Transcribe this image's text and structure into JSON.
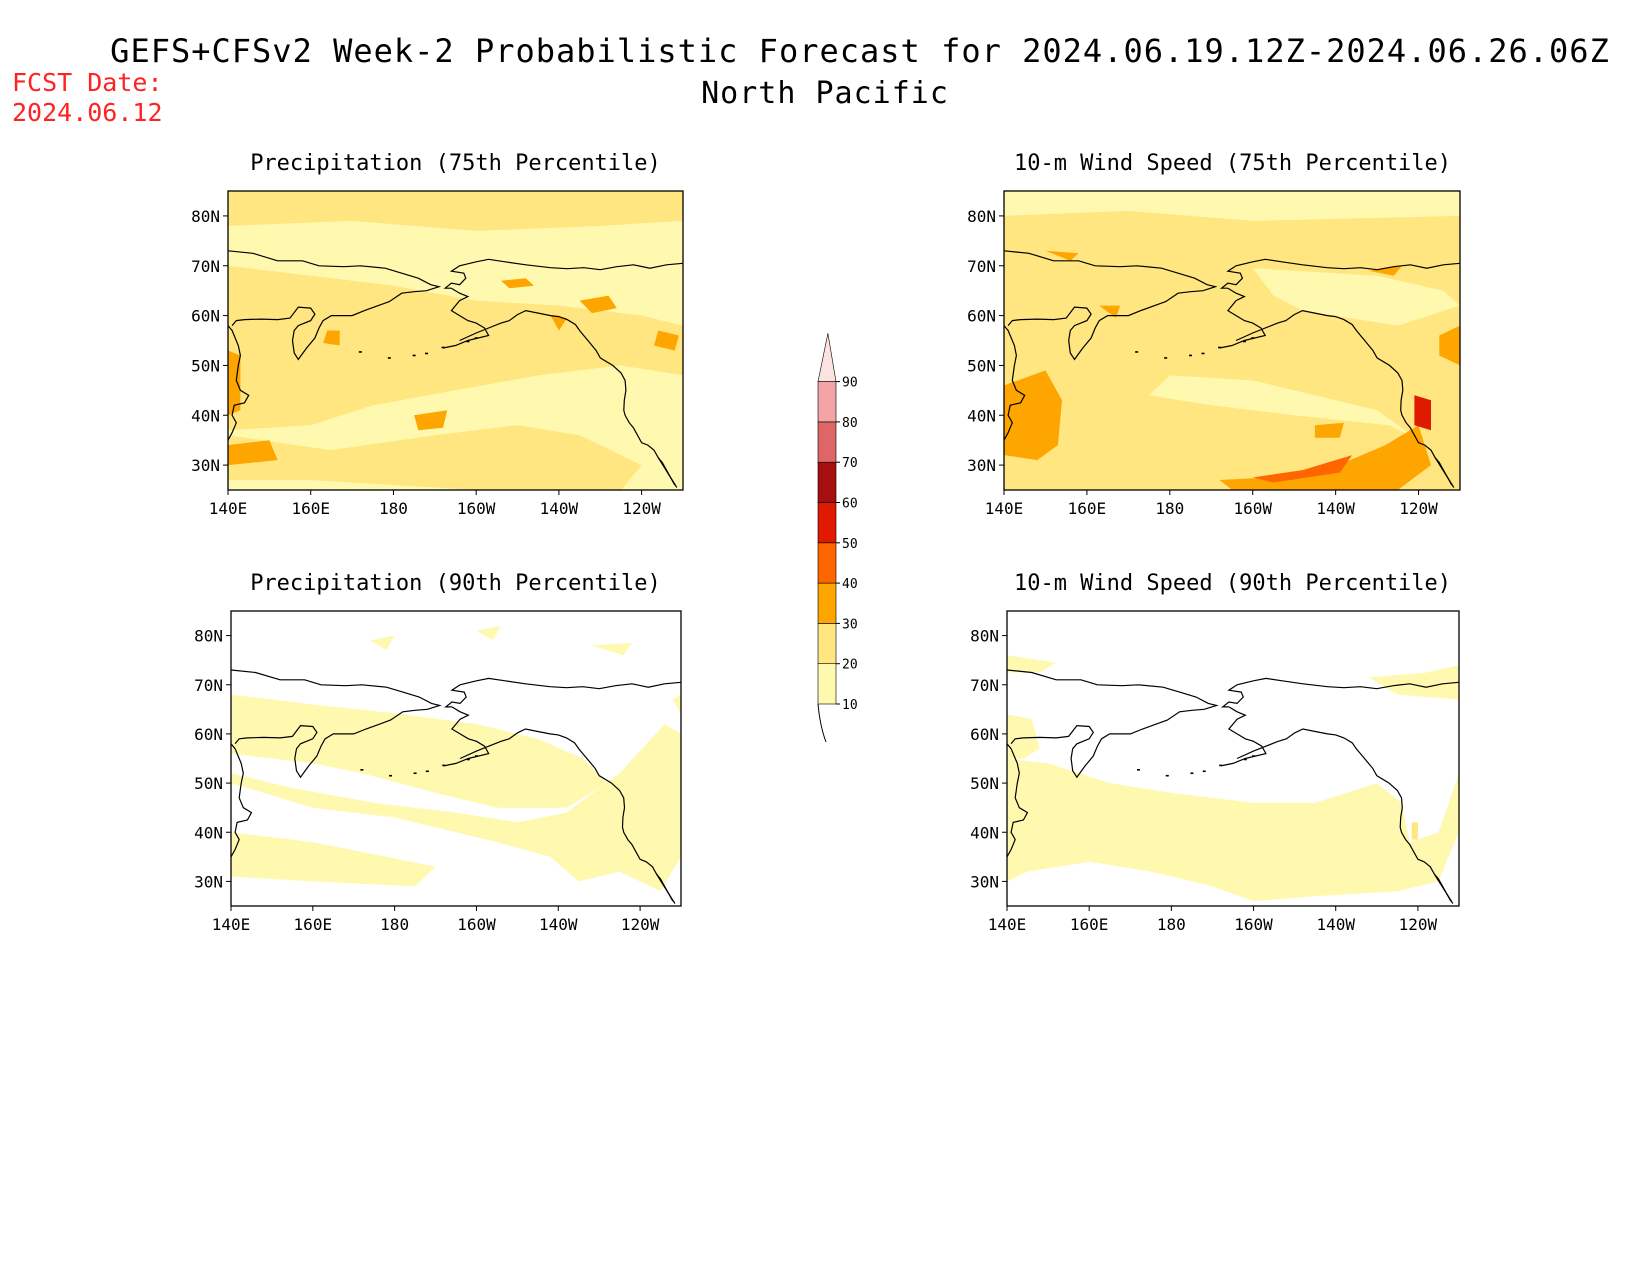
{
  "header": {
    "title": "GEFS+CFSv2 Week-2 Probabilistic Forecast for 2024.06.19.12Z-2024.06.26.06Z",
    "subtitle": "North Pacific",
    "fcst_date": "FCST Date:\n2024.06.12"
  },
  "axes": {
    "lat_labels": [
      "80N",
      "70N",
      "60N",
      "50N",
      "40N",
      "30N"
    ],
    "lon_labels": [
      "140E",
      "160E",
      "180",
      "160W",
      "140W",
      "120W"
    ]
  },
  "panels": [
    {
      "title": "Precipitation (75th Percentile)",
      "variable": "precipitation",
      "percentile": 75
    },
    {
      "title": "10-m Wind Speed (75th Percentile)",
      "variable": "wind",
      "percentile": 75
    },
    {
      "title": "Precipitation (90th Percentile)",
      "variable": "precipitation",
      "percentile": 90
    },
    {
      "title": "10-m Wind Speed (90th Percentile)",
      "variable": "wind",
      "percentile": 90
    }
  ],
  "colorbar": {
    "levels": [
      "10",
      "20",
      "30",
      "40",
      "50",
      "60",
      "70",
      "80",
      "90"
    ],
    "colors": [
      "#fff9b0",
      "#ffe680",
      "#ffa500",
      "#ff6600",
      "#e01a00",
      "#a50f0f",
      "#de6666",
      "#f4a4a4",
      "#fde2e2"
    ]
  }
}
